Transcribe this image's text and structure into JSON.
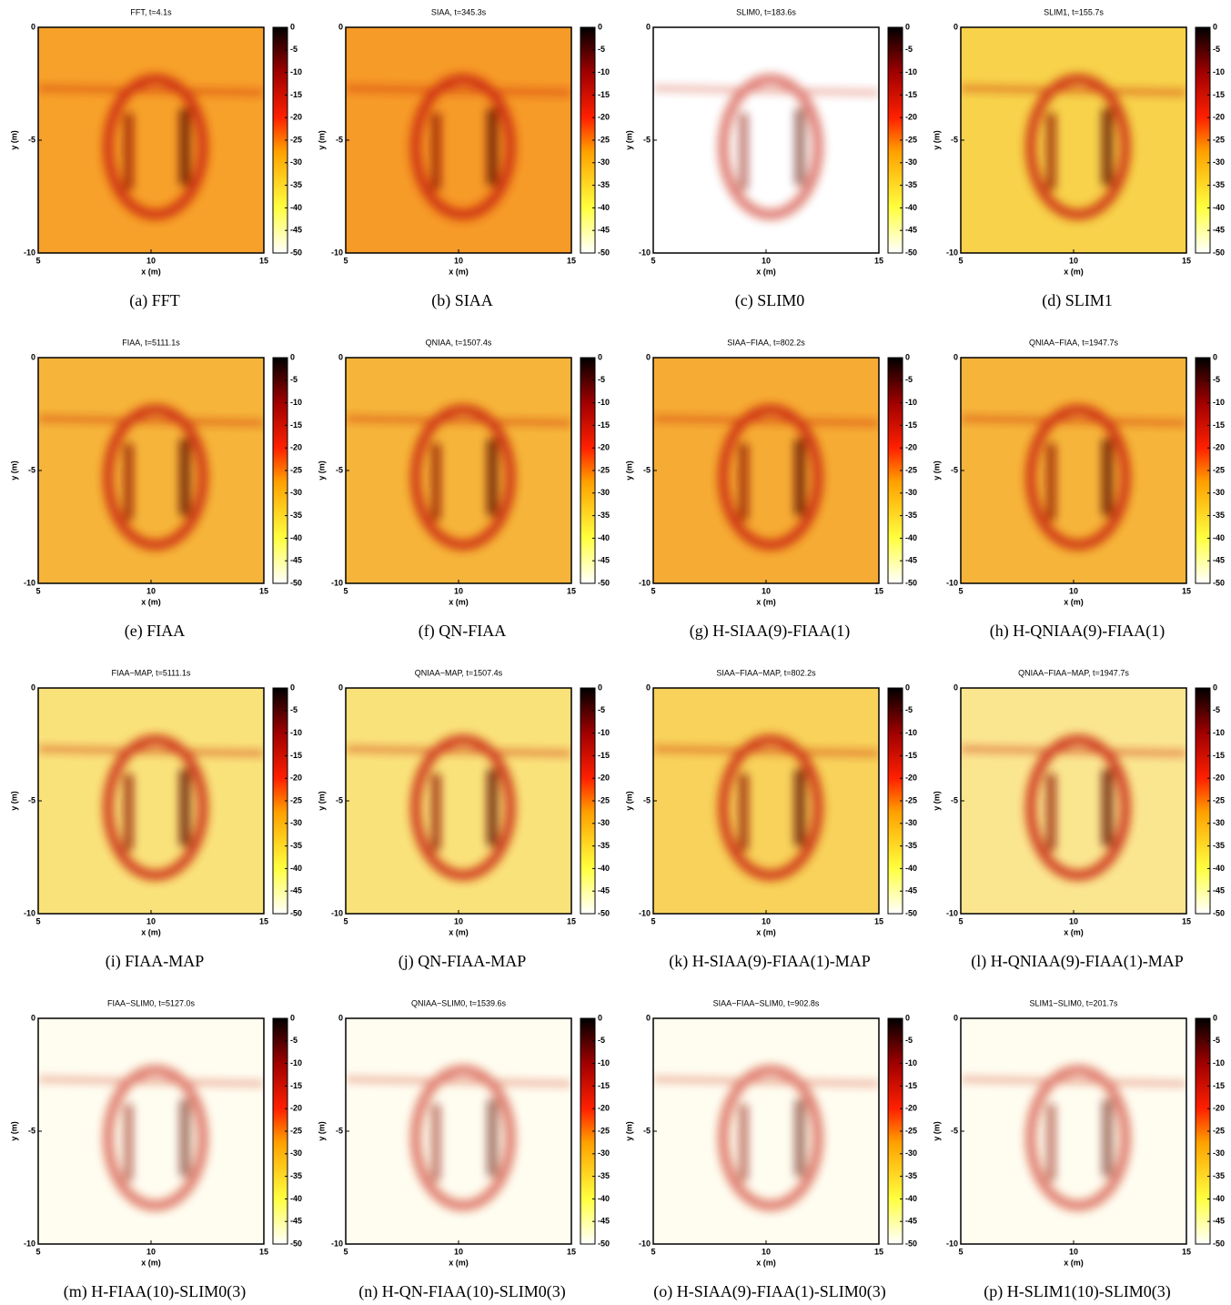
{
  "chart_data": [
    {
      "type": "heatmap",
      "title": "FFT, t=4.1s",
      "caption": "(a) FFT",
      "xlabel": "x (m)",
      "ylabel": "y (m)",
      "xlim": [
        5,
        15
      ],
      "ylim": [
        -10,
        0
      ],
      "xticks": [
        5,
        10,
        15
      ],
      "yticks": [
        0,
        -5,
        -10
      ],
      "clim": [
        -50,
        0
      ],
      "cticks": [
        0,
        -5,
        -10,
        -15,
        -20,
        -25,
        -30,
        -35,
        -40,
        -45,
        -50
      ],
      "colormap": "hot",
      "background": "#f7a12a"
    },
    {
      "type": "heatmap",
      "title": "SIAA, t=345.3s",
      "caption": "(b) SIAA",
      "xlabel": "x (m)",
      "ylabel": "y (m)",
      "xlim": [
        5,
        15
      ],
      "ylim": [
        -10,
        0
      ],
      "xticks": [
        5,
        10,
        15
      ],
      "yticks": [
        0,
        -5,
        -10
      ],
      "clim": [
        -50,
        0
      ],
      "cticks": [
        0,
        -5,
        -10,
        -15,
        -20,
        -25,
        -30,
        -35,
        -40,
        -45,
        -50
      ],
      "colormap": "hot",
      "background": "#f69a28"
    },
    {
      "type": "heatmap",
      "title": "SLIM0, t=183.6s",
      "caption": "(c) SLIM0",
      "xlabel": "x (m)",
      "ylabel": "y (m)",
      "xlim": [
        5,
        15
      ],
      "ylim": [
        -10,
        0
      ],
      "xticks": [
        5,
        10,
        15
      ],
      "yticks": [
        0,
        -5,
        -10
      ],
      "clim": [
        -50,
        0
      ],
      "cticks": [
        0,
        -5,
        -10,
        -15,
        -20,
        -25,
        -30,
        -35,
        -40,
        -45,
        -50
      ],
      "colormap": "hot",
      "background": "#ffffff"
    },
    {
      "type": "heatmap",
      "title": "SLIM1, t=155.7s",
      "caption": "(d) SLIM1",
      "xlabel": "x (m)",
      "ylabel": "y (m)",
      "xlim": [
        5,
        15
      ],
      "ylim": [
        -10,
        0
      ],
      "xticks": [
        5,
        10,
        15
      ],
      "yticks": [
        0,
        -5,
        -10
      ],
      "clim": [
        -50,
        0
      ],
      "cticks": [
        0,
        -5,
        -10,
        -15,
        -20,
        -25,
        -30,
        -35,
        -40,
        -45,
        -50
      ],
      "colormap": "hot",
      "background": "#f7d24a"
    },
    {
      "type": "heatmap",
      "title": "FIAA, t=5111.1s",
      "caption": "(e) FIAA",
      "xlabel": "x (m)",
      "ylabel": "y (m)",
      "xlim": [
        5,
        15
      ],
      "ylim": [
        -10,
        0
      ],
      "xticks": [
        5,
        10,
        15
      ],
      "yticks": [
        0,
        -5,
        -10
      ],
      "clim": [
        -50,
        0
      ],
      "cticks": [
        0,
        -5,
        -10,
        -15,
        -20,
        -25,
        -30,
        -35,
        -40,
        -45,
        -50
      ],
      "colormap": "hot",
      "background": "#f6b53a"
    },
    {
      "type": "heatmap",
      "title": "QNIAA, t=1507.4s",
      "caption": "(f) QN-FIAA",
      "xlabel": "x (m)",
      "ylabel": "y (m)",
      "xlim": [
        5,
        15
      ],
      "ylim": [
        -10,
        0
      ],
      "xticks": [
        5,
        10,
        15
      ],
      "yticks": [
        0,
        -5,
        -10
      ],
      "clim": [
        -50,
        0
      ],
      "cticks": [
        0,
        -5,
        -10,
        -15,
        -20,
        -25,
        -30,
        -35,
        -40,
        -45,
        -50
      ],
      "colormap": "hot",
      "background": "#f6b53a"
    },
    {
      "type": "heatmap",
      "title": "SIAA−FIAA, t=802.2s",
      "caption": "(g) H-SIAA(9)-FIAA(1)",
      "xlabel": "x (m)",
      "ylabel": "y (m)",
      "xlim": [
        5,
        15
      ],
      "ylim": [
        -10,
        0
      ],
      "xticks": [
        5,
        10,
        15
      ],
      "yticks": [
        0,
        -5,
        -10
      ],
      "clim": [
        -50,
        0
      ],
      "cticks": [
        0,
        -5,
        -10,
        -15,
        -20,
        -25,
        -30,
        -35,
        -40,
        -45,
        -50
      ],
      "colormap": "hot",
      "background": "#f6ac34"
    },
    {
      "type": "heatmap",
      "title": "QNIAA−FIAA, t=1947.7s",
      "caption": "(h) H-QNIAA(9)-FIAA(1)",
      "xlabel": "x (m)",
      "ylabel": "y (m)",
      "xlim": [
        5,
        15
      ],
      "ylim": [
        -10,
        0
      ],
      "xticks": [
        5,
        10,
        15
      ],
      "yticks": [
        0,
        -5,
        -10
      ],
      "clim": [
        -50,
        0
      ],
      "cticks": [
        0,
        -5,
        -10,
        -15,
        -20,
        -25,
        -30,
        -35,
        -40,
        -45,
        -50
      ],
      "colormap": "hot",
      "background": "#f6b53a"
    },
    {
      "type": "heatmap",
      "title": "FIAA−MAP, t=5111.1s",
      "caption": "(i) FIAA-MAP",
      "xlabel": "x (m)",
      "ylabel": "y (m)",
      "xlim": [
        5,
        15
      ],
      "ylim": [
        -10,
        0
      ],
      "xticks": [
        5,
        10,
        15
      ],
      "yticks": [
        0,
        -5,
        -10
      ],
      "clim": [
        -50,
        0
      ],
      "cticks": [
        0,
        -5,
        -10,
        -15,
        -20,
        -25,
        -30,
        -35,
        -40,
        -45,
        -50
      ],
      "colormap": "hot",
      "background": "#fae27a"
    },
    {
      "type": "heatmap",
      "title": "QNIAA−MAP, t=1507.4s",
      "caption": "(j) QN-FIAA-MAP",
      "xlabel": "x (m)",
      "ylabel": "y (m)",
      "xlim": [
        5,
        15
      ],
      "ylim": [
        -10,
        0
      ],
      "xticks": [
        5,
        10,
        15
      ],
      "yticks": [
        0,
        -5,
        -10
      ],
      "clim": [
        -50,
        0
      ],
      "cticks": [
        0,
        -5,
        -10,
        -15,
        -20,
        -25,
        -30,
        -35,
        -40,
        -45,
        -50
      ],
      "colormap": "hot",
      "background": "#fae27a"
    },
    {
      "type": "heatmap",
      "title": "SIAA−FIAA−MAP, t=802.2s",
      "caption": "(k) H-SIAA(9)-FIAA(1)-MAP",
      "xlabel": "x (m)",
      "ylabel": "y (m)",
      "xlim": [
        5,
        15
      ],
      "ylim": [
        -10,
        0
      ],
      "xticks": [
        5,
        10,
        15
      ],
      "yticks": [
        0,
        -5,
        -10
      ],
      "clim": [
        -50,
        0
      ],
      "cticks": [
        0,
        -5,
        -10,
        -15,
        -20,
        -25,
        -30,
        -35,
        -40,
        -45,
        -50
      ],
      "colormap": "hot",
      "background": "#f8d25a"
    },
    {
      "type": "heatmap",
      "title": "QNIAA−FIAA−MAP, t=1947.7s",
      "caption": "(l) H-QNIAA(9)-FIAA(1)-MAP",
      "xlabel": "x (m)",
      "ylabel": "y (m)",
      "xlim": [
        5,
        15
      ],
      "ylim": [
        -10,
        0
      ],
      "xticks": [
        5,
        10,
        15
      ],
      "yticks": [
        0,
        -5,
        -10
      ],
      "clim": [
        -50,
        0
      ],
      "cticks": [
        0,
        -5,
        -10,
        -15,
        -20,
        -25,
        -30,
        -35,
        -40,
        -45,
        -50
      ],
      "colormap": "hot",
      "background": "#fbe690"
    },
    {
      "type": "heatmap",
      "title": "FIAA−SLIM0, t=5127.0s",
      "caption": "(m) H-FIAA(10)-SLIM0(3)",
      "xlabel": "x (m)",
      "ylabel": "y (m)",
      "xlim": [
        5,
        15
      ],
      "ylim": [
        -10,
        0
      ],
      "xticks": [
        5,
        10,
        15
      ],
      "yticks": [
        0,
        -5,
        -10
      ],
      "clim": [
        -50,
        0
      ],
      "cticks": [
        0,
        -5,
        -10,
        -15,
        -20,
        -25,
        -30,
        -35,
        -40,
        -45,
        -50
      ],
      "colormap": "hot",
      "background": "#fffdf0"
    },
    {
      "type": "heatmap",
      "title": "QNIAA−SLIM0, t=1539.6s",
      "caption": "(n) H-QN-FIAA(10)-SLIM0(3)",
      "xlabel": "x (m)",
      "ylabel": "y (m)",
      "xlim": [
        5,
        15
      ],
      "ylim": [
        -10,
        0
      ],
      "xticks": [
        5,
        10,
        15
      ],
      "yticks": [
        0,
        -5,
        -10
      ],
      "clim": [
        -50,
        0
      ],
      "cticks": [
        0,
        -5,
        -10,
        -15,
        -20,
        -25,
        -30,
        -35,
        -40,
        -45,
        -50
      ],
      "colormap": "hot",
      "background": "#fffdf0"
    },
    {
      "type": "heatmap",
      "title": "SIAA−FIAA−SLIM0, t=902.8s",
      "caption": "(o) H-SIAA(9)-FIAA(1)-SLIM0(3)",
      "xlabel": "x (m)",
      "ylabel": "y (m)",
      "xlim": [
        5,
        15
      ],
      "ylim": [
        -10,
        0
      ],
      "xticks": [
        5,
        10,
        15
      ],
      "yticks": [
        0,
        -5,
        -10
      ],
      "clim": [
        -50,
        0
      ],
      "cticks": [
        0,
        -5,
        -10,
        -15,
        -20,
        -25,
        -30,
        -35,
        -40,
        -45,
        -50
      ],
      "colormap": "hot",
      "background": "#fffdf0"
    },
    {
      "type": "heatmap",
      "title": "SLIM1−SLIM0, t=201.7s",
      "caption": "(p) H-SLIM1(10)-SLIM0(3)",
      "xlabel": "x (m)",
      "ylabel": "y (m)",
      "xlim": [
        5,
        15
      ],
      "ylim": [
        -10,
        0
      ],
      "xticks": [
        5,
        10,
        15
      ],
      "yticks": [
        0,
        -5,
        -10
      ],
      "clim": [
        -50,
        0
      ],
      "cticks": [
        0,
        -5,
        -10,
        -15,
        -20,
        -25,
        -30,
        -35,
        -40,
        -45,
        -50
      ],
      "colormap": "hot",
      "background": "#fffdf0"
    }
  ]
}
